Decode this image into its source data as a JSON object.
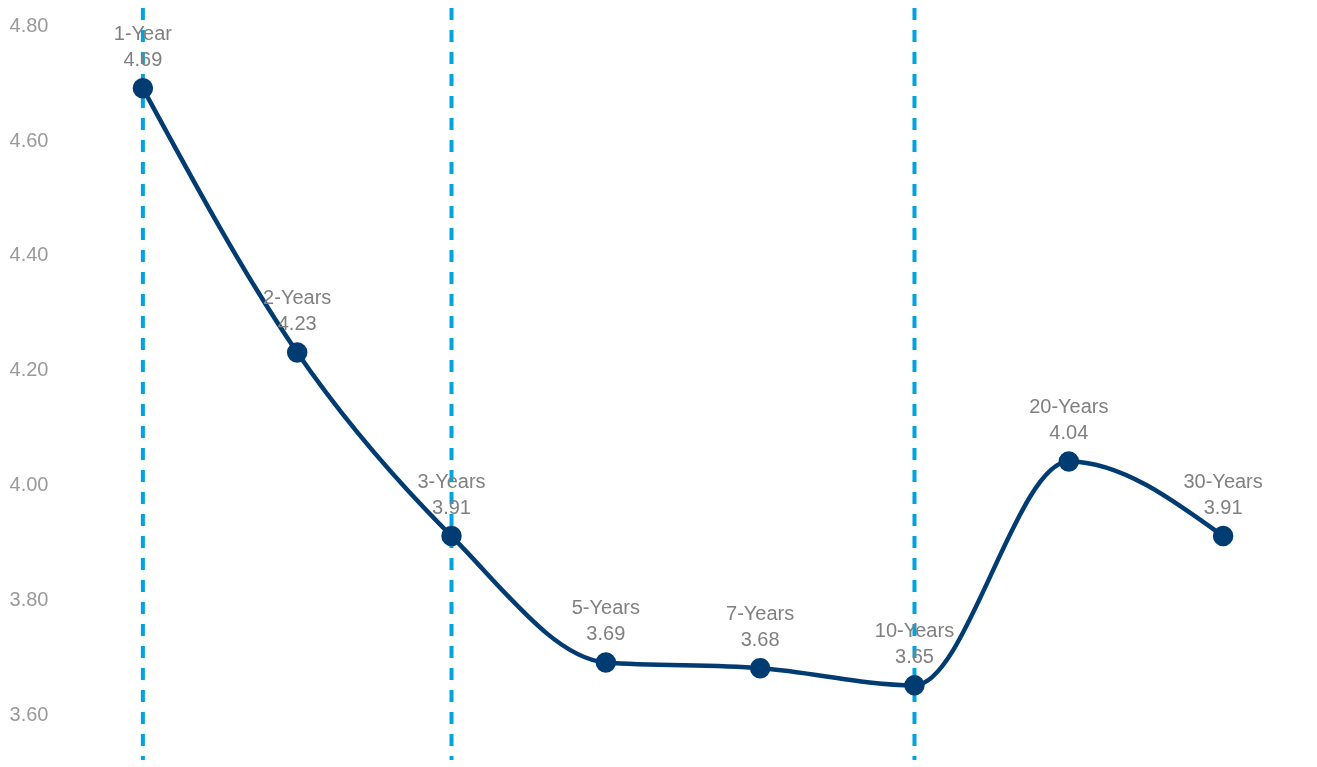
{
  "chart_data": {
    "type": "line",
    "categories": [
      "1-Year",
      "2-Years",
      "3-Years",
      "5-Years",
      "7-Years",
      "10-Years",
      "20-Years",
      "30-Years"
    ],
    "series": [
      {
        "color": "#003b71",
        "values": [
          4.69,
          4.23,
          3.91,
          3.69,
          3.68,
          3.65,
          4.04,
          3.91
        ]
      }
    ],
    "ylim": [
      3.52,
      4.83
    ],
    "yticks": [
      {
        "value": 3.6,
        "label": "3.60"
      },
      {
        "value": 3.8,
        "label": "3.80"
      },
      {
        "value": 4.0,
        "label": "4.00"
      },
      {
        "value": 4.2,
        "label": "4.20"
      },
      {
        "value": 4.4,
        "label": "4.40"
      },
      {
        "value": 4.6,
        "label": "4.60"
      },
      {
        "value": 4.8,
        "label": "4.80"
      }
    ],
    "tick_labels": "y",
    "grid": false,
    "marker": "circle",
    "line_style": "solid",
    "data_labels": true,
    "ref_lines": [
      {
        "axis": "x",
        "value": "1-Year",
        "color": "#00a3e0",
        "line_style": "dashed"
      },
      {
        "axis": "x",
        "value": "3-Years",
        "color": "#00a3e0",
        "line_style": "dashed"
      },
      {
        "axis": "x",
        "value": "10-Years",
        "color": "#00a3e0",
        "line_style": "dashed"
      }
    ]
  }
}
